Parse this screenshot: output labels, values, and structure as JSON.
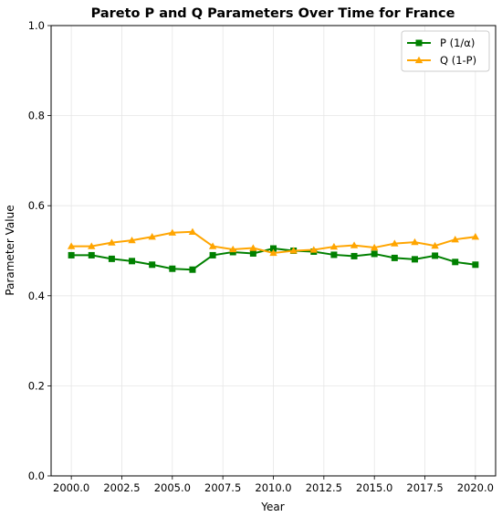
{
  "chart_data": {
    "type": "line",
    "title": "Pareto P and Q Parameters Over Time for France",
    "xlabel": "Year",
    "ylabel": "Parameter Value",
    "xlim": [
      1999,
      2021
    ],
    "ylim": [
      0.0,
      1.0
    ],
    "xticks": [
      2000.0,
      2002.5,
      2005.0,
      2007.5,
      2010.0,
      2012.5,
      2015.0,
      2017.5,
      2020.0
    ],
    "xtick_labels": [
      "2000.0",
      "2002.5",
      "2005.0",
      "2007.5",
      "2010.0",
      "2012.5",
      "2015.0",
      "2017.5",
      "2020.0"
    ],
    "yticks": [
      0.0,
      0.2,
      0.4,
      0.6,
      0.8,
      1.0
    ],
    "ytick_labels": [
      "0.0",
      "0.2",
      "0.4",
      "0.6",
      "0.8",
      "1.0"
    ],
    "grid": true,
    "legend_position": "top-right",
    "x": [
      2000,
      2001,
      2002,
      2003,
      2004,
      2005,
      2006,
      2007,
      2008,
      2009,
      2010,
      2011,
      2012,
      2013,
      2014,
      2015,
      2016,
      2017,
      2018,
      2019,
      2020
    ],
    "series": [
      {
        "name": "P (1/α)",
        "marker": "square",
        "color": "#008000",
        "values": [
          0.49,
          0.49,
          0.482,
          0.477,
          0.469,
          0.46,
          0.458,
          0.49,
          0.497,
          0.494,
          0.505,
          0.5,
          0.498,
          0.491,
          0.488,
          0.493,
          0.484,
          0.481,
          0.489,
          0.475,
          0.469
        ]
      },
      {
        "name": "Q (1-P)",
        "marker": "triangle",
        "color": "#FFA500",
        "values": [
          0.51,
          0.51,
          0.518,
          0.523,
          0.531,
          0.54,
          0.542,
          0.51,
          0.503,
          0.506,
          0.495,
          0.5,
          0.502,
          0.509,
          0.512,
          0.507,
          0.516,
          0.519,
          0.511,
          0.525,
          0.531
        ]
      }
    ]
  }
}
